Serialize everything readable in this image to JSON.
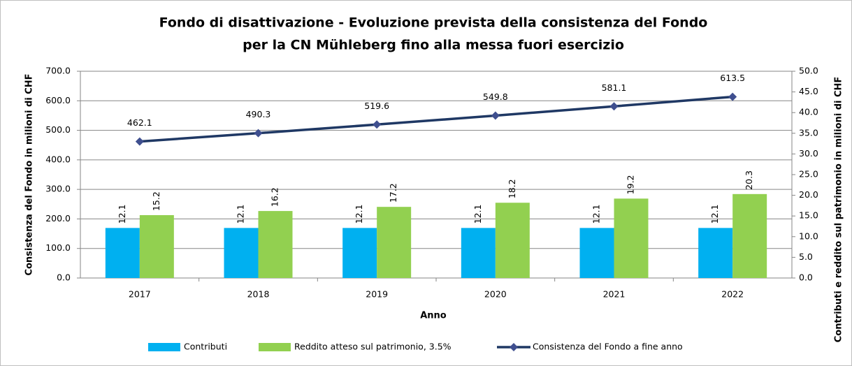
{
  "chart_data": {
    "type": "bar",
    "title": [
      "Fondo di disattivazione - Evoluzione prevista della consistenza del Fondo",
      "per la CN Mühleberg fino alla messa fuori esercizio"
    ],
    "x_label": "Anno",
    "y_label": "Consistenza del Fondo in milioni di CHF",
    "y2_label": "Contributi e reddito sul patrimonio in milioni di CHF",
    "categories": [
      "2017",
      "2018",
      "2019",
      "2020",
      "2021",
      "2022"
    ],
    "series": [
      {
        "name": "Contributi",
        "color": "#00b0f0",
        "axis": "y2",
        "values": [
          12.1,
          12.1,
          12.1,
          12.1,
          12.1,
          12.1
        ]
      },
      {
        "name": "Reddito atteso sul patrimonio, 3.5%",
        "color": "#92d050",
        "axis": "y2",
        "values": [
          15.2,
          16.2,
          17.2,
          18.2,
          19.2,
          20.3
        ]
      },
      {
        "name": "Consistenza del Fondo a fine anno",
        "color": "#1f3864",
        "type": "line",
        "values": [
          462.1,
          490.3,
          519.6,
          549.8,
          581.1,
          613.5
        ]
      }
    ],
    "ylim": [
      0,
      700
    ],
    "yticks": [
      {
        "value": 0,
        "label": "0.0"
      },
      {
        "value": 100,
        "label": "100.0"
      },
      {
        "value": 200,
        "label": "200.0"
      },
      {
        "value": 300,
        "label": "300.0"
      },
      {
        "value": 400,
        "label": "400.0"
      },
      {
        "value": 500,
        "label": "500.0"
      },
      {
        "value": 600,
        "label": "600.0"
      },
      {
        "value": 700,
        "label": "700.0"
      }
    ],
    "y2lim": [
      0,
      50
    ],
    "y2ticks": [
      {
        "value": 0,
        "label": "0.0"
      },
      {
        "value": 5,
        "label": "5.0"
      },
      {
        "value": 10,
        "label": "10.0"
      },
      {
        "value": 15,
        "label": "15.0"
      },
      {
        "value": 20,
        "label": "20.0"
      },
      {
        "value": 25,
        "label": "25.0"
      },
      {
        "value": 30,
        "label": "30.0"
      },
      {
        "value": 35,
        "label": "35.0"
      },
      {
        "value": 40,
        "label": "40.0"
      },
      {
        "value": 45,
        "label": "45.0"
      },
      {
        "value": 50,
        "label": "50.0"
      }
    ],
    "grid": true,
    "legend": "bottom"
  }
}
